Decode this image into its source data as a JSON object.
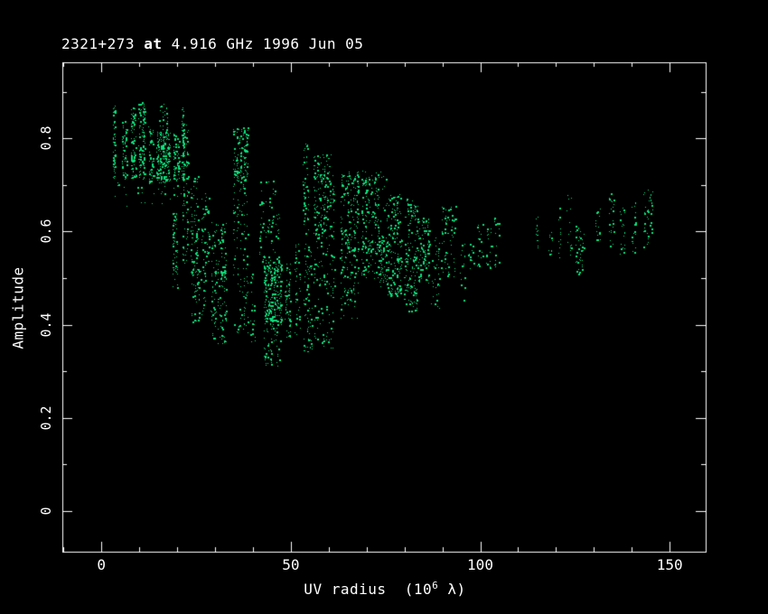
{
  "colors": {
    "background": "#000000",
    "frame": "#ffffff",
    "text": "#ffffff",
    "points": "#0be17c"
  },
  "chart_data": {
    "type": "scatter",
    "title": "2321+273 at 4.916 GHz 1996 Jun 05",
    "title_parts": {
      "prefix": "2321+273 ",
      "emph": "at",
      "suffix": " 4.916 GHz 1996 Jun 05"
    },
    "xlabel": "UV radius  (10^6 λ)",
    "xlabel_parts": {
      "prefix": "UV radius  (10",
      "sup": "6",
      "suffix": " λ)"
    },
    "ylabel": "Amplitude",
    "xlim": [
      -10.3,
      159.5
    ],
    "ylim": [
      -0.087,
      0.963
    ],
    "x_ticks": {
      "values": [
        0,
        50,
        100,
        150
      ],
      "labels": [
        "0",
        "50",
        "100",
        "150"
      ]
    },
    "x_minor_tick_step": 10,
    "y_ticks": {
      "values": [
        0,
        0.2,
        0.4,
        0.6,
        0.8
      ],
      "labels": [
        "0",
        "0.2",
        "0.4",
        "0.6",
        "0.8"
      ]
    },
    "y_minor_tick_step": 0.1,
    "grid": false,
    "legend": false,
    "marker": "1px green pixel dots forming vertical baseline streaks",
    "clusters_format": "[uv_radius_min(1e6 lambda), uv_radius_max, amplitude_min, amplitude_max, n_points] — dense vertical streak groups read from the plot",
    "clusters": [
      [
        2.8,
        3.8,
        0.715,
        0.87,
        60
      ],
      [
        5.3,
        6.7,
        0.71,
        0.84,
        60
      ],
      [
        7.7,
        9.1,
        0.715,
        0.87,
        85
      ],
      [
        9.6,
        11.5,
        0.715,
        0.878,
        130
      ],
      [
        12.4,
        13.8,
        0.7,
        0.83,
        50
      ],
      [
        14.4,
        18.1,
        0.705,
        0.815,
        220
      ],
      [
        15.0,
        17.6,
        0.815,
        0.875,
        25
      ],
      [
        18.9,
        20.5,
        0.7,
        0.81,
        65
      ],
      [
        20.8,
        21.9,
        0.71,
        0.87,
        40
      ],
      [
        3.0,
        21.0,
        0.655,
        0.715,
        30
      ],
      [
        18.6,
        20.1,
        0.48,
        0.64,
        60
      ],
      [
        21.1,
        23.0,
        0.69,
        0.835,
        65
      ],
      [
        21.1,
        23.0,
        0.52,
        0.69,
        40
      ],
      [
        23.5,
        25.5,
        0.5,
        0.72,
        75
      ],
      [
        23.5,
        27.5,
        0.405,
        0.52,
        60
      ],
      [
        26.3,
        28.5,
        0.5,
        0.69,
        50
      ],
      [
        28.8,
        33.0,
        0.5,
        0.62,
        65
      ],
      [
        28.8,
        33.0,
        0.36,
        0.515,
        100
      ],
      [
        34.6,
        38.8,
        0.7,
        0.825,
        130
      ],
      [
        34.6,
        38.8,
        0.515,
        0.7,
        60
      ],
      [
        34.6,
        38.8,
        0.37,
        0.515,
        45
      ],
      [
        39.3,
        40.5,
        0.36,
        0.51,
        25
      ],
      [
        42.8,
        47.6,
        0.4,
        0.535,
        260
      ],
      [
        42.8,
        47.6,
        0.31,
        0.4,
        50
      ],
      [
        41.5,
        47.0,
        0.535,
        0.71,
        75
      ],
      [
        48.2,
        50.0,
        0.37,
        0.535,
        60
      ],
      [
        50.8,
        52.7,
        0.38,
        0.575,
        40
      ],
      [
        53.3,
        55.5,
        0.335,
        0.575,
        75
      ],
      [
        53.0,
        54.8,
        0.59,
        0.79,
        50
      ],
      [
        55.9,
        61.5,
        0.587,
        0.767,
        190
      ],
      [
        55.9,
        61.5,
        0.35,
        0.587,
        100
      ],
      [
        62.9,
        67.9,
        0.51,
        0.73,
        190
      ],
      [
        62.9,
        67.9,
        0.41,
        0.51,
        45
      ],
      [
        68.4,
        73.4,
        0.5,
        0.73,
        190
      ],
      [
        73.4,
        75.6,
        0.48,
        0.595,
        70
      ],
      [
        73.4,
        75.6,
        0.62,
        0.73,
        15
      ],
      [
        75.3,
        79.3,
        0.46,
        0.68,
        170
      ],
      [
        79.8,
        83.6,
        0.43,
        0.67,
        150
      ],
      [
        83.6,
        86.5,
        0.49,
        0.63,
        100
      ],
      [
        87.0,
        89.3,
        0.43,
        0.6,
        35
      ],
      [
        89.5,
        93.5,
        0.5,
        0.66,
        65
      ],
      [
        94.6,
        96.0,
        0.44,
        0.58,
        16
      ],
      [
        96.5,
        98.4,
        0.515,
        0.575,
        15
      ],
      [
        98.9,
        100.8,
        0.52,
        0.63,
        18
      ],
      [
        101.3,
        103.1,
        0.52,
        0.61,
        18
      ],
      [
        103.4,
        105.1,
        0.52,
        0.63,
        18
      ],
      [
        114.4,
        115.5,
        0.53,
        0.66,
        14
      ],
      [
        117.7,
        119.1,
        0.55,
        0.6,
        10
      ],
      [
        120.3,
        121.4,
        0.54,
        0.655,
        13
      ],
      [
        122.7,
        124.1,
        0.55,
        0.675,
        13
      ],
      [
        122.9,
        123.3,
        0.665,
        0.678,
        2
      ],
      [
        124.9,
        127.4,
        0.51,
        0.62,
        42
      ],
      [
        130.3,
        131.7,
        0.575,
        0.65,
        16
      ],
      [
        133.9,
        135.3,
        0.565,
        0.69,
        22
      ],
      [
        136.7,
        138.1,
        0.55,
        0.655,
        20
      ],
      [
        139.8,
        141.2,
        0.555,
        0.665,
        20
      ],
      [
        142.9,
        145.5,
        0.565,
        0.69,
        38
      ]
    ]
  }
}
